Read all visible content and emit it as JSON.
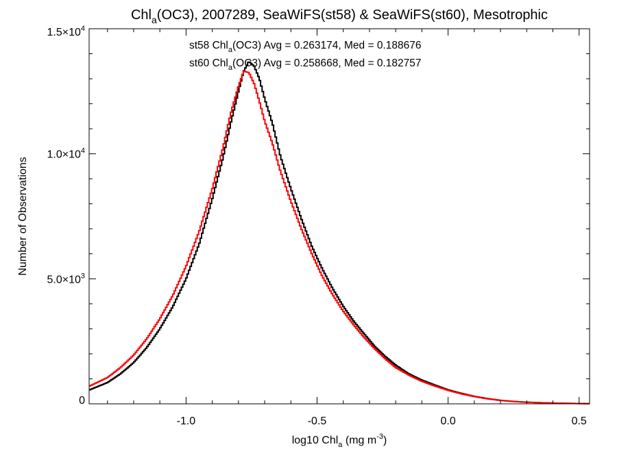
{
  "chart_data": {
    "type": "line",
    "title": "Chl_a(OC3), 2007289, SeaWiFS(st58) & SeaWiFS(st60), Mesotrophic",
    "xlabel": "log10 Chl_a (mg m^-3)",
    "ylabel": "Number of Observations",
    "xlim": [
      -1.37,
      0.54
    ],
    "ylim": [
      0,
      15000
    ],
    "x_ticks": [
      {
        "value": -1.0,
        "label": "-1.0"
      },
      {
        "value": -0.5,
        "label": "-0.5"
      },
      {
        "value": 0.0,
        "label": "0.0"
      },
      {
        "value": 0.5,
        "label": "0.5"
      }
    ],
    "y_ticks": [
      {
        "value": 0,
        "label": "0"
      },
      {
        "value": 5000,
        "label": "5.0×10^3"
      },
      {
        "value": 10000,
        "label": "1.0×10^4"
      },
      {
        "value": 15000,
        "label": "1.5×10^4"
      }
    ],
    "grid": false,
    "legend_position": "top-center",
    "series": [
      {
        "label": "st58",
        "stats": "Avg = 0.263174, Med = 0.188676",
        "color": "#000000",
        "points": [
          [
            -1.37,
            550
          ],
          [
            -1.3,
            850
          ],
          [
            -1.25,
            1200
          ],
          [
            -1.2,
            1650
          ],
          [
            -1.15,
            2250
          ],
          [
            -1.1,
            3000
          ],
          [
            -1.05,
            3900
          ],
          [
            -1.0,
            5000
          ],
          [
            -0.95,
            6400
          ],
          [
            -0.9,
            8200
          ],
          [
            -0.86,
            9800
          ],
          [
            -0.83,
            11200
          ],
          [
            -0.8,
            12500
          ],
          [
            -0.78,
            13300
          ],
          [
            -0.76,
            13700
          ],
          [
            -0.74,
            13500
          ],
          [
            -0.72,
            13000
          ],
          [
            -0.7,
            12200
          ],
          [
            -0.67,
            11200
          ],
          [
            -0.64,
            9900
          ],
          [
            -0.6,
            8600
          ],
          [
            -0.56,
            7400
          ],
          [
            -0.52,
            6300
          ],
          [
            -0.48,
            5400
          ],
          [
            -0.44,
            4600
          ],
          [
            -0.4,
            3900
          ],
          [
            -0.36,
            3300
          ],
          [
            -0.32,
            2800
          ],
          [
            -0.28,
            2300
          ],
          [
            -0.24,
            1900
          ],
          [
            -0.2,
            1550
          ],
          [
            -0.15,
            1200
          ],
          [
            -0.1,
            950
          ],
          [
            -0.05,
            750
          ],
          [
            0.0,
            560
          ],
          [
            0.05,
            420
          ],
          [
            0.1,
            300
          ],
          [
            0.15,
            210
          ],
          [
            0.2,
            140
          ],
          [
            0.25,
            95
          ],
          [
            0.3,
            65
          ],
          [
            0.35,
            45
          ],
          [
            0.4,
            30
          ],
          [
            0.45,
            20
          ],
          [
            0.5,
            12
          ],
          [
            0.54,
            8
          ]
        ]
      },
      {
        "label": "st60",
        "stats": "Avg = 0.258668, Med = 0.182757",
        "color": "#ff0000",
        "points": [
          [
            -1.37,
            700
          ],
          [
            -1.3,
            1050
          ],
          [
            -1.25,
            1450
          ],
          [
            -1.2,
            1950
          ],
          [
            -1.15,
            2600
          ],
          [
            -1.1,
            3400
          ],
          [
            -1.05,
            4350
          ],
          [
            -1.0,
            5500
          ],
          [
            -0.95,
            6900
          ],
          [
            -0.9,
            8600
          ],
          [
            -0.86,
            10200
          ],
          [
            -0.83,
            11600
          ],
          [
            -0.8,
            12700
          ],
          [
            -0.78,
            13300
          ],
          [
            -0.76,
            13250
          ],
          [
            -0.74,
            12800
          ],
          [
            -0.72,
            12100
          ],
          [
            -0.7,
            11300
          ],
          [
            -0.67,
            10400
          ],
          [
            -0.64,
            9300
          ],
          [
            -0.6,
            8100
          ],
          [
            -0.56,
            7000
          ],
          [
            -0.52,
            6000
          ],
          [
            -0.48,
            5100
          ],
          [
            -0.44,
            4350
          ],
          [
            -0.4,
            3700
          ],
          [
            -0.36,
            3150
          ],
          [
            -0.32,
            2650
          ],
          [
            -0.28,
            2200
          ],
          [
            -0.24,
            1800
          ],
          [
            -0.2,
            1450
          ],
          [
            -0.15,
            1150
          ],
          [
            -0.1,
            900
          ],
          [
            -0.05,
            710
          ],
          [
            0.0,
            540
          ],
          [
            0.05,
            400
          ],
          [
            0.1,
            290
          ],
          [
            0.15,
            200
          ],
          [
            0.2,
            135
          ],
          [
            0.25,
            92
          ],
          [
            0.3,
            62
          ],
          [
            0.35,
            43
          ],
          [
            0.4,
            28
          ],
          [
            0.45,
            18
          ],
          [
            0.5,
            11
          ],
          [
            0.54,
            7
          ]
        ]
      }
    ]
  }
}
